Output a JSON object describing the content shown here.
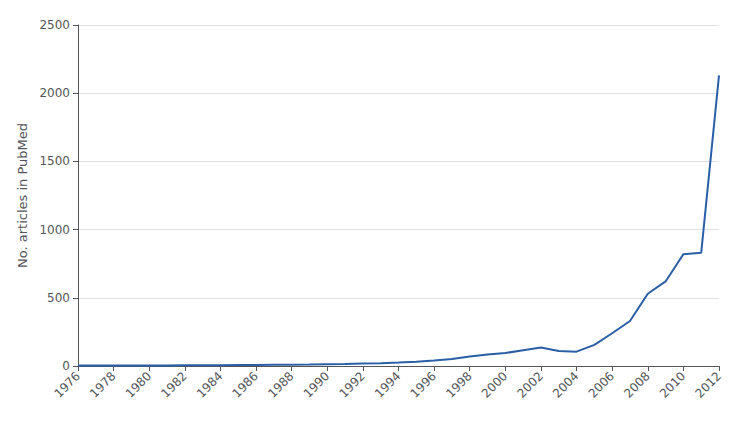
{
  "chart_data": {
    "type": "line",
    "ylabel": "No. articles in PubMed",
    "x": [
      1976,
      1977,
      1978,
      1979,
      1980,
      1981,
      1982,
      1983,
      1984,
      1985,
      1986,
      1987,
      1988,
      1989,
      1990,
      1991,
      1992,
      1993,
      1994,
      1995,
      1996,
      1997,
      1998,
      1999,
      2000,
      2001,
      2002,
      2003,
      2004,
      2005,
      2006,
      2007,
      2008,
      2009,
      2010,
      2011,
      2012
    ],
    "values": [
      3,
      3,
      3,
      3,
      4,
      4,
      5,
      5,
      6,
      7,
      8,
      9,
      10,
      11,
      13,
      15,
      18,
      20,
      25,
      32,
      40,
      52,
      70,
      85,
      95,
      115,
      135,
      110,
      105,
      155,
      240,
      330,
      530,
      620,
      820,
      830,
      2130
    ],
    "color": "#2a5fa5",
    "xlim": [
      1976,
      2012
    ],
    "xticks": [
      1976,
      1978,
      1980,
      1982,
      1984,
      1986,
      1988,
      1990,
      1992,
      1994,
      1996,
      1998,
      2000,
      2002,
      2004,
      2006,
      2008,
      2010,
      2012
    ],
    "ylim": [
      0,
      2500
    ],
    "yticks": [
      0,
      500,
      1000,
      1500,
      2000,
      2500
    ],
    "grid": true
  }
}
